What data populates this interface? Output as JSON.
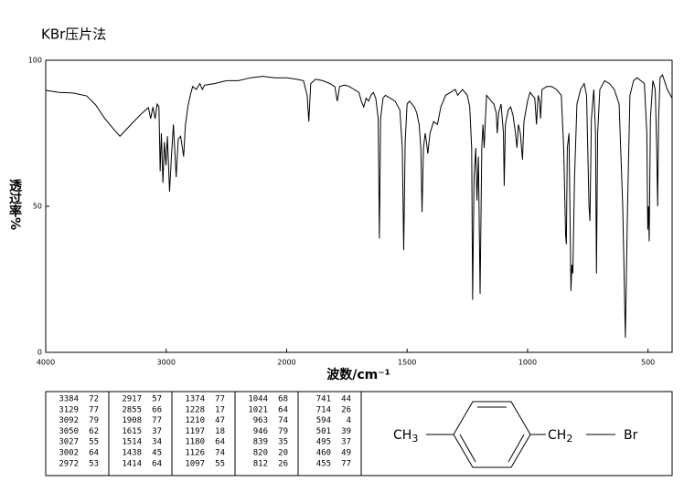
{
  "chart_data": {
    "type": "line",
    "title": "KBr压片法",
    "xlabel": "波数/cm⁻¹",
    "ylabel": "透过率%",
    "color": "#000000",
    "xlim": [
      4000,
      400
    ],
    "xticks": [
      4000,
      3000,
      2000,
      1500,
      1000,
      500
    ],
    "x_scale": "tick-spaced",
    "ylim": [
      0,
      100
    ],
    "yticks": [
      0,
      50,
      100
    ],
    "grid": false,
    "x": [
      4000,
      3887,
      3774,
      3660,
      3585,
      3509,
      3434,
      3384,
      3283,
      3208,
      3147,
      3129,
      3110,
      3092,
      3075,
      3060,
      3050,
      3040,
      3027,
      3015,
      3002,
      2990,
      2972,
      2955,
      2940,
      2917,
      2900,
      2880,
      2855,
      2840,
      2820,
      2800,
      2780,
      2750,
      2720,
      2700,
      2680,
      2600,
      2500,
      2400,
      2300,
      2200,
      2100,
      2000,
      1960,
      1930,
      1915,
      1908,
      1900,
      1880,
      1850,
      1820,
      1800,
      1790,
      1780,
      1760,
      1740,
      1720,
      1700,
      1690,
      1680,
      1670,
      1660,
      1650,
      1640,
      1630,
      1620,
      1615,
      1610,
      1600,
      1590,
      1570,
      1550,
      1530,
      1520,
      1514,
      1508,
      1500,
      1490,
      1470,
      1460,
      1450,
      1443,
      1438,
      1432,
      1425,
      1418,
      1414,
      1405,
      1390,
      1374,
      1360,
      1340,
      1320,
      1300,
      1290,
      1280,
      1270,
      1260,
      1250,
      1240,
      1232,
      1228,
      1222,
      1215,
      1210,
      1204,
      1197,
      1190,
      1185,
      1180,
      1175,
      1170,
      1160,
      1150,
      1140,
      1130,
      1126,
      1120,
      1110,
      1100,
      1097,
      1092,
      1080,
      1070,
      1060,
      1050,
      1044,
      1038,
      1030,
      1021,
      1015,
      1000,
      990,
      980,
      970,
      963,
      956,
      950,
      946,
      940,
      920,
      900,
      880,
      860,
      850,
      842,
      839,
      835,
      828,
      822,
      820,
      816,
      812,
      805,
      795,
      780,
      765,
      755,
      745,
      741,
      735,
      725,
      718,
      714,
      709,
      700,
      680,
      660,
      640,
      620,
      605,
      594,
      585,
      575,
      560,
      545,
      530,
      515,
      505,
      501,
      498,
      495,
      490,
      480,
      470,
      464,
      460,
      456,
      450,
      440,
      420,
      400
    ],
    "values": [
      89.7,
      89,
      88.8,
      87.8,
      84.7,
      80,
      76.3,
      74,
      78.4,
      81.6,
      83.8,
      80,
      84,
      80,
      85,
      84,
      62,
      75,
      58,
      72,
      64,
      74,
      55,
      68,
      78,
      60,
      73,
      74,
      67,
      78,
      84,
      88,
      91,
      90,
      92,
      90,
      91.5,
      92,
      93,
      93,
      94,
      94.5,
      94,
      94,
      93.5,
      93,
      88,
      79,
      92,
      93.5,
      93,
      92,
      91,
      86,
      91,
      91.5,
      91,
      90,
      89,
      86,
      84,
      87,
      86,
      88,
      89,
      87,
      80,
      39,
      80,
      87,
      88,
      87,
      86,
      83,
      70,
      35,
      72,
      85,
      86,
      84,
      82,
      78,
      70,
      48,
      70,
      75,
      71,
      68,
      75,
      79,
      78,
      84,
      88,
      89,
      90,
      88,
      89,
      90,
      89,
      88,
      84,
      70,
      18,
      60,
      70,
      52,
      67,
      20,
      70,
      78,
      70,
      80,
      88,
      87,
      86,
      85,
      82,
      75,
      82,
      85,
      75,
      57,
      78,
      83,
      84,
      81,
      75,
      70,
      78,
      75,
      66,
      79,
      86,
      89,
      88,
      87,
      78,
      88,
      86,
      80,
      90,
      91,
      91,
      90,
      88,
      70,
      40,
      37,
      70,
      75,
      35,
      21,
      30,
      27,
      60,
      85,
      90,
      92,
      88,
      50,
      45,
      80,
      90,
      75,
      27,
      75,
      90,
      93,
      92,
      90,
      85,
      50,
      5,
      50,
      88,
      93,
      94,
      93,
      92,
      75,
      42,
      50,
      38,
      80,
      93,
      90,
      70,
      50,
      80,
      94,
      95,
      90,
      87
    ]
  },
  "peak_table": [
    [
      [
        "3384",
        "72"
      ],
      [
        "3129",
        "77"
      ],
      [
        "3092",
        "79"
      ],
      [
        "3050",
        "62"
      ],
      [
        "3027",
        "55"
      ],
      [
        "3002",
        "64"
      ],
      [
        "2972",
        "53"
      ]
    ],
    [
      [
        "2917",
        "57"
      ],
      [
        "2855",
        "66"
      ],
      [
        "1908",
        "77"
      ],
      [
        "1615",
        "37"
      ],
      [
        "1514",
        "34"
      ],
      [
        "1438",
        "45"
      ],
      [
        "1414",
        "64"
      ]
    ],
    [
      [
        "1374",
        "77"
      ],
      [
        "1228",
        "17"
      ],
      [
        "1210",
        "47"
      ],
      [
        "1197",
        "18"
      ],
      [
        "1180",
        "64"
      ],
      [
        "1126",
        "74"
      ],
      [
        "1097",
        "55"
      ]
    ],
    [
      [
        "1044",
        "68"
      ],
      [
        "1021",
        "64"
      ],
      [
        "963",
        "74"
      ],
      [
        "946",
        "79"
      ],
      [
        "839",
        "35"
      ],
      [
        "820",
        "20"
      ],
      [
        "812",
        "26"
      ]
    ],
    [
      [
        "741",
        "44"
      ],
      [
        "714",
        "26"
      ],
      [
        "594",
        "4"
      ],
      [
        "501",
        "39"
      ],
      [
        "495",
        "37"
      ],
      [
        "460",
        "49"
      ],
      [
        "455",
        "77"
      ]
    ]
  ],
  "structure": {
    "left": {
      "text": "CH",
      "sub": "3"
    },
    "right": {
      "text": "CH",
      "sub": "2"
    },
    "end": "Br"
  }
}
